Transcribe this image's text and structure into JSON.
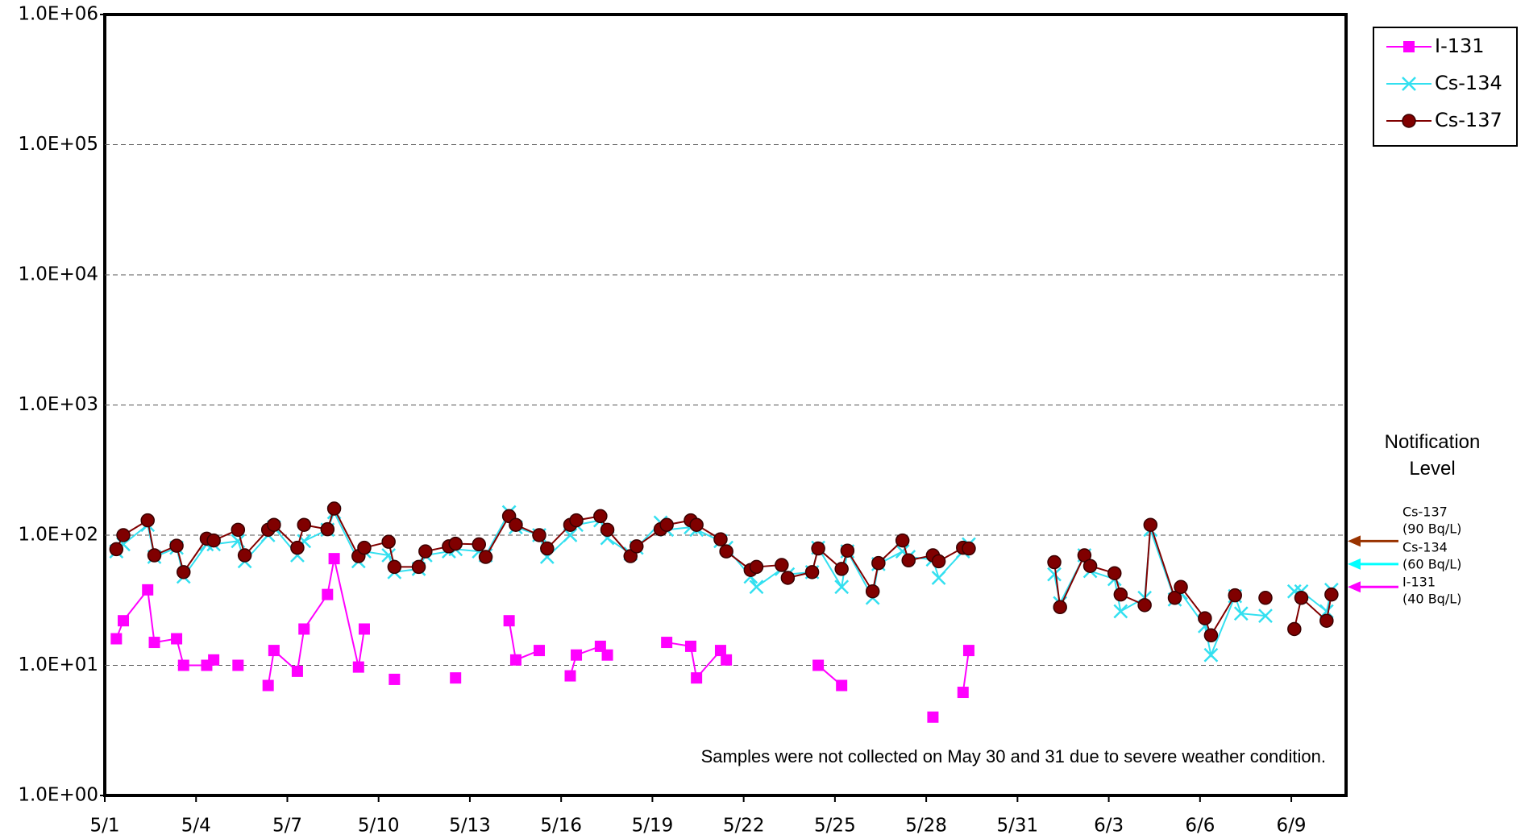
{
  "chart_data": {
    "type": "line",
    "log_y": true,
    "grid": true,
    "legend": "top-right",
    "note": "Samples were not collected on May 30 and 31 due to severe weather condition.",
    "notification_title": "Notification Level",
    "notification_levels": [
      {
        "name": "Cs-137",
        "label": "(90 Bq/L)",
        "value": 90,
        "color": "#993300"
      },
      {
        "name": "Cs-134",
        "label": "(60 Bq/L)",
        "value": 60,
        "color": "#00ffff"
      },
      {
        "name": "I-131",
        "label": "(40 Bq/L)",
        "value": 40,
        "color": "#ff00ff"
      }
    ],
    "xlim": [
      0,
      40.8
    ],
    "xticks": [
      {
        "value": 0,
        "label": "5/1"
      },
      {
        "value": 3,
        "label": "5/4"
      },
      {
        "value": 6,
        "label": "5/7"
      },
      {
        "value": 9,
        "label": "5/10"
      },
      {
        "value": 12,
        "label": "5/13"
      },
      {
        "value": 15,
        "label": "5/16"
      },
      {
        "value": 18,
        "label": "5/19"
      },
      {
        "value": 21,
        "label": "5/22"
      },
      {
        "value": 24,
        "label": "5/25"
      },
      {
        "value": 27,
        "label": "5/28"
      },
      {
        "value": 30,
        "label": "5/31"
      },
      {
        "value": 33,
        "label": "6/3"
      },
      {
        "value": 36,
        "label": "6/6"
      },
      {
        "value": 39,
        "label": "6/9"
      }
    ],
    "ylim": [
      1,
      1000000
    ],
    "yticks": [
      {
        "value": 1,
        "label": "1.0E+00"
      },
      {
        "value": 10,
        "label": "1.0E+01"
      },
      {
        "value": 100,
        "label": "1.0E+02"
      },
      {
        "value": 1000,
        "label": "1.0E+03"
      },
      {
        "value": 10000,
        "label": "1.0E+04"
      },
      {
        "value": 100000,
        "label": "1.0E+05"
      },
      {
        "value": 1000000,
        "label": "1.0E+06"
      }
    ],
    "series": [
      {
        "name": "I-131",
        "color": "#ff00ff",
        "marker": "square",
        "x": [
          0.38,
          0.61,
          1.41,
          1.63,
          2.36,
          2.59,
          3.35,
          3.58,
          null,
          4.38,
          null,
          5.37,
          5.56,
          6.33,
          6.55,
          7.32,
          7.54,
          8.34,
          8.53,
          null,
          9.52,
          null,
          11.53,
          null,
          13.29,
          13.51,
          14.28,
          null,
          15.3,
          15.5,
          16.29,
          16.52,
          null,
          18.47,
          19.26,
          19.45,
          20.24,
          20.43,
          null,
          23.45,
          24.22,
          null,
          27.22,
          null,
          28.21,
          28.4
        ],
        "values": [
          16,
          22,
          38,
          15,
          16,
          10,
          10,
          11,
          null,
          10,
          null,
          7,
          13,
          9,
          19,
          35,
          66,
          9.7,
          19,
          null,
          7.8,
          null,
          8,
          null,
          22,
          11,
          13,
          null,
          8.3,
          12,
          14,
          12,
          null,
          15,
          14,
          8,
          13,
          11,
          null,
          10,
          7,
          null,
          4,
          null,
          6.2,
          13
        ]
      },
      {
        "name": "Cs-134",
        "color": "#33e0f0",
        "marker": "cross",
        "x": [
          0.38,
          0.61,
          1.41,
          1.63,
          2.36,
          2.59,
          3.35,
          3.58,
          4.38,
          4.6,
          5.37,
          5.56,
          6.33,
          6.55,
          7.32,
          7.54,
          8.34,
          8.53,
          9.33,
          9.52,
          10.32,
          10.54,
          11.31,
          11.53,
          12.3,
          12.52,
          13.29,
          13.51,
          14.28,
          14.54,
          15.3,
          15.5,
          16.29,
          16.52,
          17.28,
          17.48,
          18.27,
          18.47,
          19.26,
          19.45,
          20.24,
          20.43,
          21.23,
          21.42,
          22.25,
          22.45,
          23.25,
          23.45,
          24.22,
          24.41,
          25.24,
          25.43,
          26.22,
          26.42,
          27.22,
          27.41,
          28.21,
          28.4,
          null,
          31.21,
          31.4,
          32.2,
          32.39,
          33.19,
          33.39,
          34.18,
          34.37,
          35.17,
          35.37,
          36.16,
          36.36,
          37.15,
          37.35,
          38.15,
          null,
          39.1,
          39.33,
          40.16,
          40.32
        ],
        "values": [
          75,
          85,
          120,
          68,
          80,
          48,
          85,
          85,
          90,
          63,
          100,
          115,
          70,
          90,
          110,
          150,
          63,
          75,
          70,
          52,
          55,
          70,
          75,
          78,
          75,
          70,
          150,
          115,
          100,
          68,
          100,
          120,
          130,
          95,
          72,
          80,
          125,
          110,
          115,
          110,
          90,
          80,
          48,
          40,
          55,
          50,
          52,
          80,
          40,
          75,
          33,
          60,
          75,
          68,
          65,
          47,
          75,
          85,
          null,
          50,
          30,
          70,
          53,
          46,
          26,
          33,
          110,
          32,
          36,
          20,
          12,
          34,
          25,
          24,
          null,
          37,
          37,
          26,
          38
        ]
      },
      {
        "name": "Cs-137",
        "color": "#800000",
        "marker": "circle",
        "x": [
          0.38,
          0.61,
          1.41,
          1.63,
          2.36,
          2.59,
          3.35,
          3.58,
          4.38,
          4.6,
          5.37,
          5.56,
          6.33,
          6.55,
          7.32,
          7.54,
          8.34,
          8.53,
          9.33,
          9.52,
          10.32,
          10.54,
          11.31,
          11.53,
          12.3,
          12.52,
          13.29,
          13.51,
          14.28,
          14.54,
          15.3,
          15.5,
          16.29,
          16.52,
          17.28,
          17.48,
          18.27,
          18.47,
          19.26,
          19.45,
          20.24,
          20.43,
          21.23,
          21.42,
          22.25,
          22.45,
          23.25,
          23.45,
          24.22,
          24.41,
          25.24,
          25.43,
          26.22,
          26.42,
          27.22,
          27.41,
          28.21,
          28.4,
          null,
          31.21,
          31.4,
          32.2,
          32.39,
          33.19,
          33.39,
          34.18,
          34.37,
          35.17,
          35.37,
          36.16,
          36.36,
          37.15,
          null,
          38.15,
          null,
          39.1,
          39.33,
          40.16,
          40.32
        ],
        "values": [
          78,
          100,
          130,
          70,
          83,
          52,
          94,
          91,
          110,
          70,
          110,
          120,
          80,
          120,
          111,
          160,
          69,
          80,
          89,
          57,
          57,
          75,
          82,
          86,
          85,
          68,
          140,
          120,
          100,
          79,
          120,
          130,
          140,
          110,
          69,
          82,
          111,
          120,
          130,
          120,
          93,
          75,
          54,
          57,
          59,
          47,
          52,
          79,
          55,
          76,
          37,
          61,
          91,
          64,
          70,
          63,
          80,
          79,
          null,
          62,
          28,
          70,
          58,
          51,
          35,
          29,
          120,
          33,
          40,
          23,
          17,
          34.5,
          null,
          33,
          null,
          19,
          33,
          22,
          35
        ]
      }
    ]
  }
}
